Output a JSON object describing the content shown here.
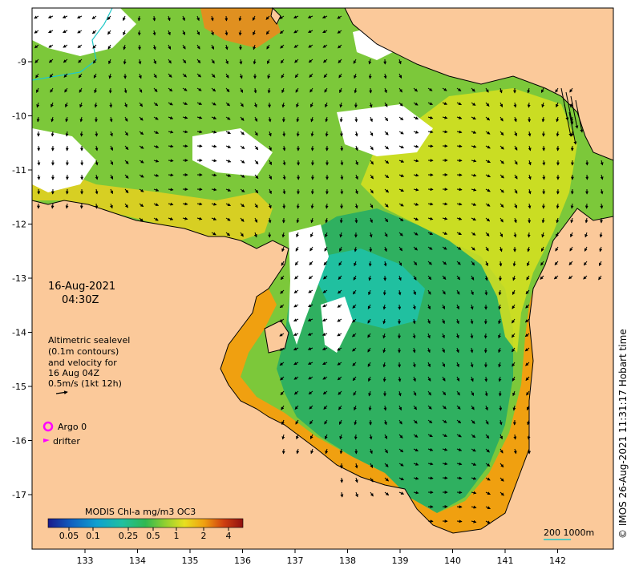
{
  "map": {
    "date_line": "16-Aug-2021",
    "time_line": "04:30Z",
    "legend_lines": [
      "Altimetric sealevel",
      "(0.1m contours)",
      "and velocity for",
      "16 Aug 04Z",
      "0.5m/s (1kt 12h)"
    ],
    "argo_label": "Argo 0",
    "drifter_label": "drifter",
    "colorbar_title": "MODIS Chl-a mg/m3 OC3",
    "colorbar_ticks": [
      "0.05",
      "0.1",
      "0.25",
      "0.5",
      "1",
      "2",
      "4"
    ],
    "scale_label": "200  1000m",
    "credit": "© IMOS 26-Aug-2021 11:31:17 Hobart time",
    "x_ticks": [
      "133",
      "134",
      "135",
      "136",
      "137",
      "138",
      "139",
      "140",
      "141",
      "142"
    ],
    "y_ticks": [
      "-9",
      "-10",
      "-11",
      "-12",
      "-13",
      "-14",
      "-15",
      "-16",
      "-17"
    ],
    "colors": {
      "land": "#fbc99a",
      "coast": "#000000",
      "cloud": "#ffffff",
      "chl_low": "#1fbfa0",
      "chl_mid": "#3fbf3f",
      "chl_high": "#e07010",
      "argo": "#ff00ff",
      "drifter": "#ff00ff",
      "bathy": "#20c8c8"
    }
  }
}
